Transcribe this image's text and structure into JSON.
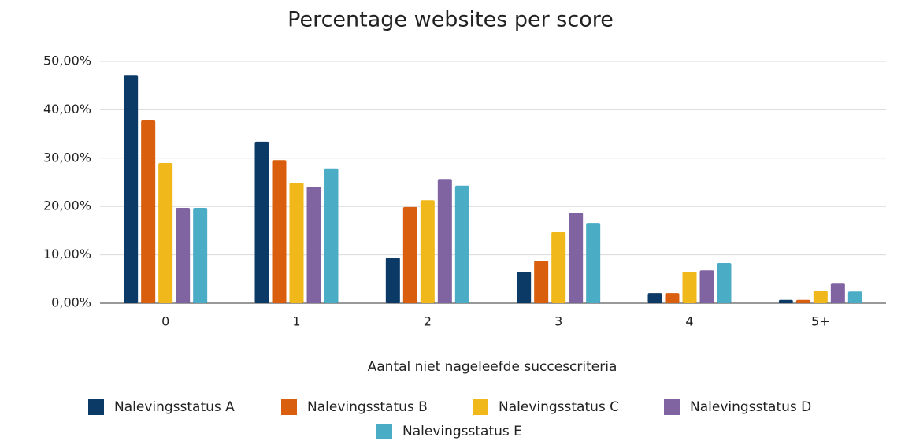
{
  "chart_data": {
    "type": "bar",
    "title": "Percentage websites per score",
    "x_label": "Aantal niet nageleefde succescriteria",
    "categories": [
      "0",
      "1",
      "2",
      "3",
      "4",
      "5+"
    ],
    "series": [
      {
        "name": "Nalevingsstatus A",
        "color": "#0b3a66",
        "values": [
          47.2,
          33.4,
          9.4,
          6.5,
          2.1,
          0.7
        ]
      },
      {
        "name": "Nalevingsstatus B",
        "color": "#d95f0e",
        "values": [
          37.8,
          29.6,
          19.9,
          8.8,
          2.1,
          0.7
        ]
      },
      {
        "name": "Nalevingsstatus C",
        "color": "#f0b81a",
        "values": [
          29.0,
          24.9,
          21.3,
          14.7,
          6.5,
          2.6
        ]
      },
      {
        "name": "Nalevingsstatus D",
        "color": "#8064a2",
        "values": [
          19.7,
          24.1,
          25.7,
          18.7,
          6.8,
          4.2
        ]
      },
      {
        "name": "Nalevingsstatus E",
        "color": "#4bacc6",
        "values": [
          19.7,
          27.9,
          24.3,
          16.6,
          8.3,
          2.4
        ]
      }
    ],
    "ylim": [
      0,
      50
    ],
    "yticks": [
      {
        "value": 0,
        "label": "0,00%"
      },
      {
        "value": 10,
        "label": "10,00%"
      },
      {
        "value": 20,
        "label": "20,00%"
      },
      {
        "value": 30,
        "label": "30,00%"
      },
      {
        "value": 40,
        "label": "40,00%"
      },
      {
        "value": 50,
        "label": "50,00%"
      }
    ],
    "grid": true,
    "legend": "bottom"
  }
}
